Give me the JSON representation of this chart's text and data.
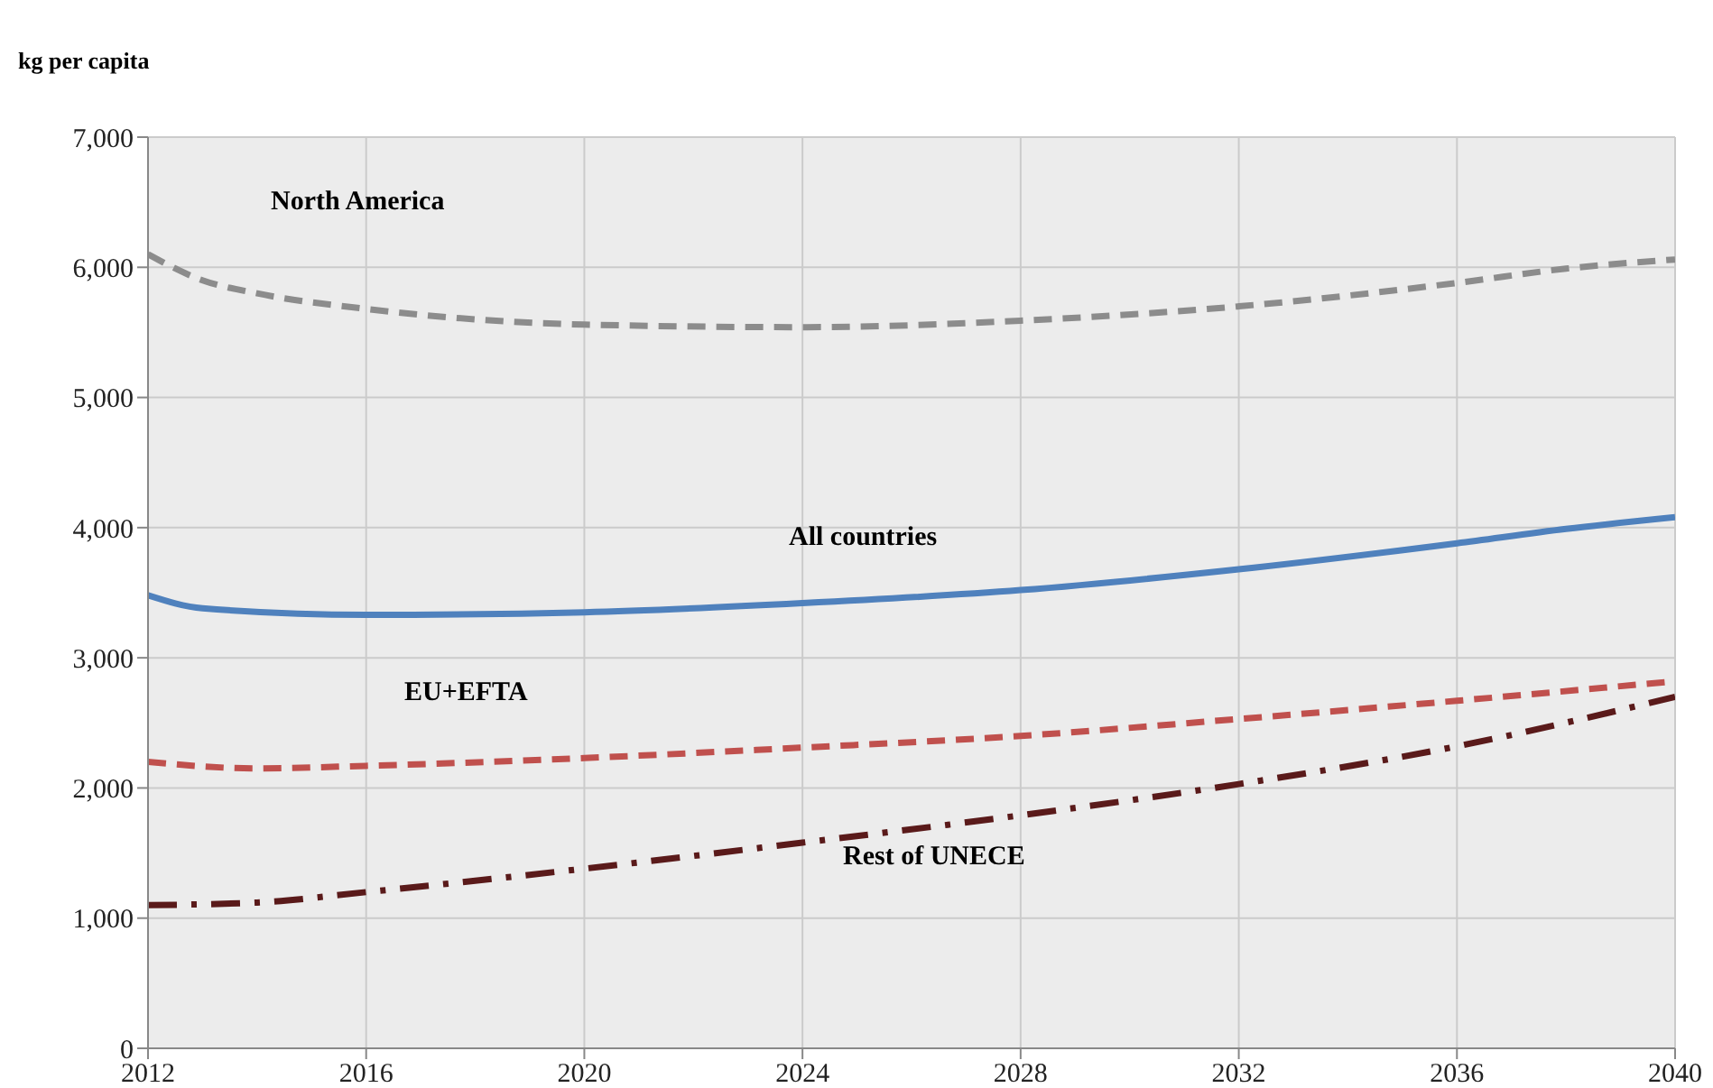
{
  "chart_data": {
    "type": "line",
    "ylabel": "kg per capita",
    "xlim": [
      2012,
      2040
    ],
    "xticks": [
      2012,
      2016,
      2020,
      2024,
      2028,
      2032,
      2036,
      2040
    ],
    "ylim": [
      0,
      7000
    ],
    "yticks": [
      {
        "value": 0,
        "label": "0"
      },
      {
        "value": 1000,
        "label": "1,000"
      },
      {
        "value": 2000,
        "label": "2,000"
      },
      {
        "value": 3000,
        "label": "3,000"
      },
      {
        "value": 4000,
        "label": "4,000"
      },
      {
        "value": 5000,
        "label": "5,000"
      },
      {
        "value": 6000,
        "label": "6,000"
      },
      {
        "value": 7000,
        "label": "7,000"
      }
    ],
    "grid": true,
    "marker": "none",
    "series": [
      {
        "name": "North America",
        "color": "#8c8c8c",
        "line_style": "dashed",
        "x": [
          2012,
          2013,
          2014,
          2016,
          2018,
          2020,
          2024,
          2028,
          2032,
          2036,
          2038,
          2040
        ],
        "values": [
          6100,
          5900,
          5800,
          5680,
          5600,
          5560,
          5540,
          5590,
          5700,
          5880,
          5990,
          6060
        ]
      },
      {
        "name": "All countries",
        "color": "#4f81bd",
        "line_style": "solid",
        "x": [
          2012,
          2013,
          2016,
          2020,
          2024,
          2028,
          2032,
          2036,
          2038,
          2040
        ],
        "values": [
          3480,
          3380,
          3330,
          3350,
          3420,
          3520,
          3680,
          3880,
          3990,
          4080
        ]
      },
      {
        "name": "EU+EFTA",
        "color": "#c0504d",
        "line_style": "dashed",
        "x": [
          2012,
          2014,
          2016,
          2020,
          2024,
          2028,
          2032,
          2036,
          2040
        ],
        "values": [
          2200,
          2150,
          2170,
          2230,
          2310,
          2400,
          2530,
          2670,
          2820
        ]
      },
      {
        "name": "Rest of UNECE",
        "color": "#5a1a1a",
        "line_style": "dashdot",
        "x": [
          2012,
          2014,
          2016,
          2020,
          2024,
          2028,
          2032,
          2036,
          2040
        ],
        "values": [
          1100,
          1120,
          1200,
          1380,
          1580,
          1790,
          2030,
          2320,
          2700
        ]
      }
    ]
  }
}
